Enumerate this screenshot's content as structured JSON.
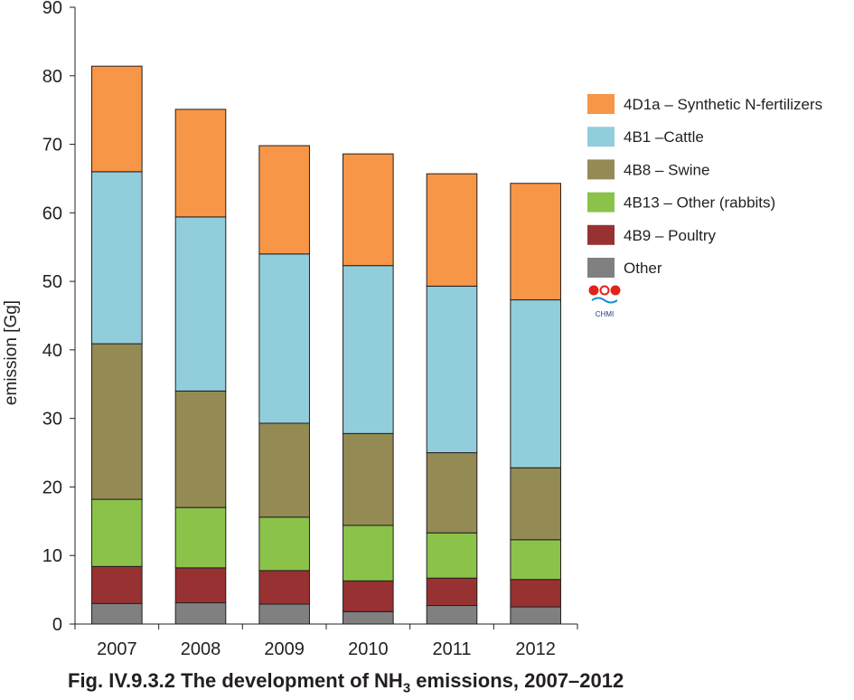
{
  "caption": {
    "prefix": "Fig. IV.9.3.2  The development of NH",
    "subscript": "3",
    "suffix": " emissions, 2007–2012"
  },
  "logo": {
    "text": "CHMI"
  },
  "chart_data": {
    "type": "bar",
    "stacked": true,
    "title": "Fig. IV.9.3.2  The development of NH3 emissions, 2007–2012",
    "xlabel": "",
    "ylabel": "emission [Gg]",
    "ylim": [
      0,
      90
    ],
    "yticks": [
      0,
      10,
      20,
      30,
      40,
      50,
      60,
      70,
      80,
      90
    ],
    "categories": [
      "2007",
      "2008",
      "2009",
      "2010",
      "2011",
      "2012"
    ],
    "legend_position": "right",
    "grid": false,
    "series": [
      {
        "name": "Other",
        "color": "#808080",
        "values": [
          3.0,
          3.1,
          2.9,
          1.8,
          2.7,
          2.5
        ]
      },
      {
        "name": "4B9 – Poultry",
        "color": "#983232",
        "values": [
          5.4,
          5.1,
          4.9,
          4.5,
          4.0,
          4.0
        ]
      },
      {
        "name": "4B13 – Other (rabbits)",
        "color": "#8bc34a",
        "values": [
          9.8,
          8.8,
          7.8,
          8.1,
          6.6,
          5.8
        ]
      },
      {
        "name": "4B8 – Swine",
        "color": "#948a54",
        "values": [
          22.7,
          17.0,
          13.7,
          13.4,
          11.7,
          10.5
        ]
      },
      {
        "name": "4B1 –Cattle",
        "color": "#92cddc",
        "values": [
          25.1,
          25.4,
          24.7,
          24.5,
          24.3,
          24.5
        ]
      },
      {
        "name": "4D1a – Synthetic N-fertilizers",
        "color": "#f79646",
        "values": [
          15.4,
          15.7,
          15.8,
          16.3,
          16.4,
          17.0
        ]
      }
    ]
  }
}
